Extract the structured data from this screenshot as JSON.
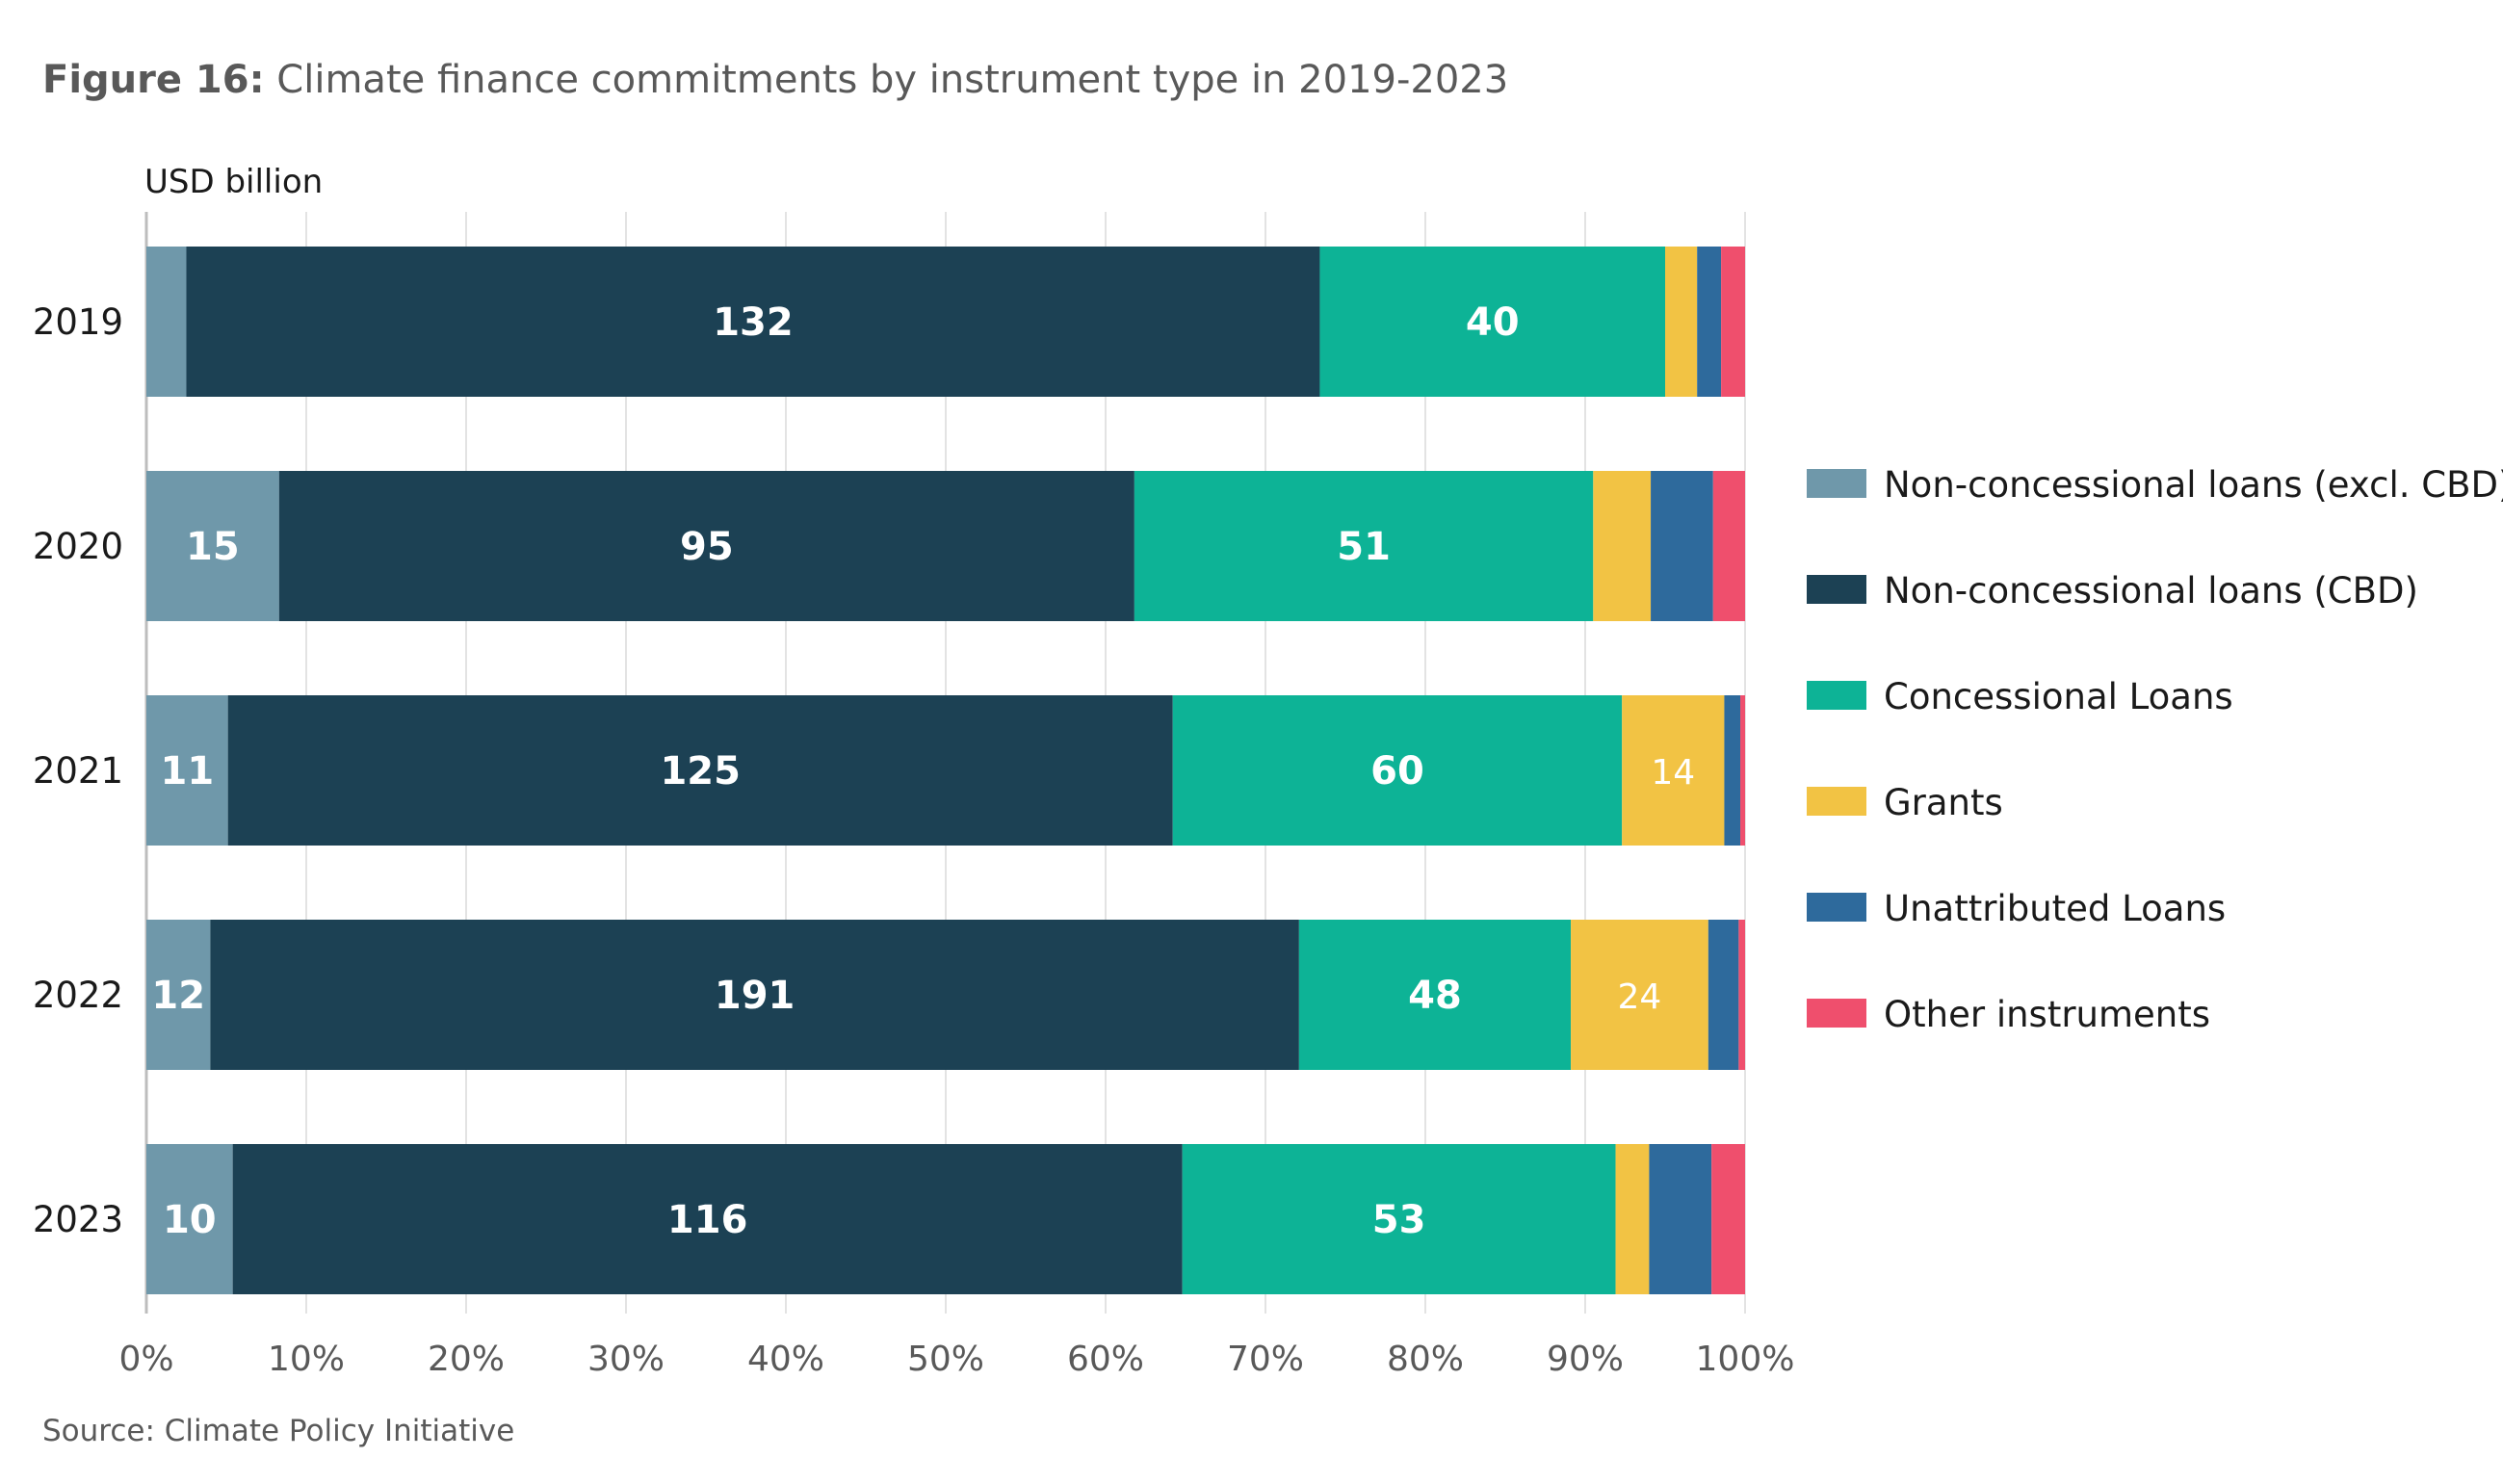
{
  "figure": {
    "label": "Figure 16:",
    "title": " Climate finance commitments by instrument type in 2019-2023",
    "unit": "USD billion",
    "source": "Source: Climate Policy Initiative"
  },
  "chart_data": {
    "type": "bar",
    "orientation": "horizontal",
    "stacked": "percent",
    "categories": [
      "2019",
      "2020",
      "2021",
      "2022",
      "2023"
    ],
    "xlim": [
      0,
      100
    ],
    "x_ticks": [
      "0%",
      "10%",
      "20%",
      "30%",
      "40%",
      "50%",
      "60%",
      "70%",
      "80%",
      "90%",
      "100%"
    ],
    "grid": true,
    "legend": "right",
    "series": [
      {
        "name": "Non-concessional loans (excl. CBD)",
        "color": "#6f98aa",
        "label_color": "#ffffff",
        "label_bold": true,
        "shares": [
          2.5,
          8.3,
          5.1,
          4.0,
          5.4
        ],
        "labels": [
          "",
          "15",
          "11",
          "12",
          "10"
        ]
      },
      {
        "name": "Non-concessional loans (CBD)",
        "color": "#1c4154",
        "label_color": "#ffffff",
        "label_bold": true,
        "shares": [
          70.9,
          53.5,
          59.1,
          68.1,
          59.4
        ],
        "labels": [
          "132",
          "95",
          "125",
          "191",
          "116"
        ]
      },
      {
        "name": "Concessional Loans",
        "color": "#0db396",
        "label_color": "#ffffff",
        "label_bold": true,
        "shares": [
          21.6,
          28.7,
          28.1,
          17.0,
          27.1
        ],
        "labels": [
          "40",
          "51",
          "60",
          "48",
          "53"
        ]
      },
      {
        "name": "Grants",
        "color": "#f2c344",
        "label_color": "#ffffff",
        "label_bold": false,
        "shares": [
          2.0,
          3.6,
          6.4,
          8.6,
          2.1
        ],
        "labels": [
          "",
          "",
          "14",
          "24",
          ""
        ]
      },
      {
        "name": "Unattributed Loans",
        "color": "#2e6a9c",
        "label_color": "#ffffff",
        "label_bold": false,
        "shares": [
          1.5,
          3.9,
          1.0,
          1.9,
          3.9
        ],
        "labels": [
          "",
          "",
          "",
          "",
          ""
        ]
      },
      {
        "name": "Other instruments",
        "color": "#ef4f6d",
        "label_color": "#ffffff",
        "label_bold": false,
        "shares": [
          1.5,
          2.0,
          0.3,
          0.4,
          2.1
        ],
        "labels": [
          "",
          "",
          "",
          "",
          ""
        ]
      }
    ]
  }
}
